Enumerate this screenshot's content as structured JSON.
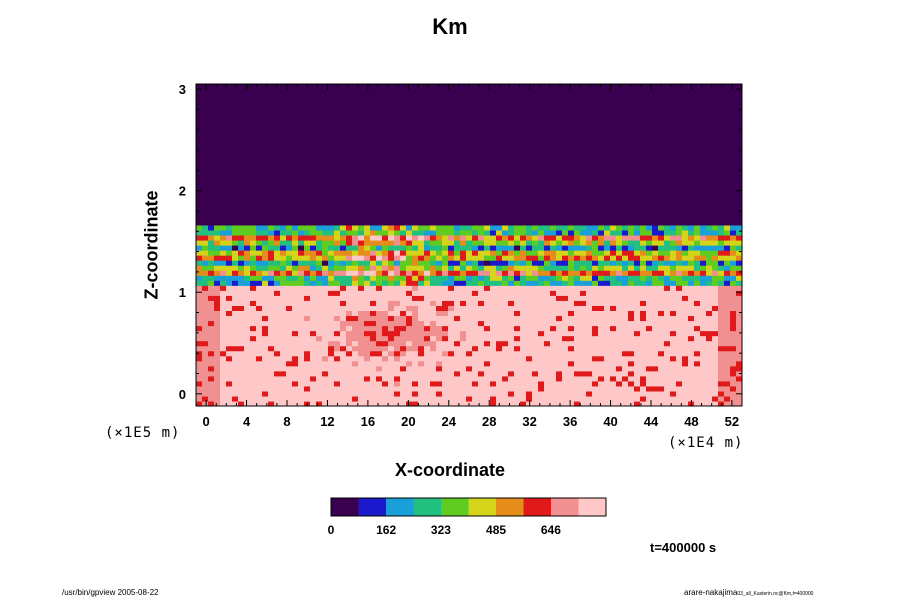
{
  "chart_data": {
    "type": "heatmap",
    "title": "Km",
    "xlabel": "X-coordinate",
    "ylabel": "Z-coordinate",
    "x_unit": "(×1E4 m)",
    "y_unit": "(×1E5 m)",
    "x_ticks": [
      "0",
      "4",
      "8",
      "12",
      "16",
      "20",
      "24",
      "28",
      "32",
      "36",
      "40",
      "44",
      "48",
      "52"
    ],
    "y_ticks": [
      "0",
      "1",
      "2",
      "3"
    ],
    "xlim": [
      -1,
      53
    ],
    "ylim": [
      -0.12,
      3.05
    ],
    "colorbar": {
      "min": 0,
      "max": 808,
      "ticks": [
        "0",
        "162",
        "323",
        "485",
        "646"
      ],
      "colors": [
        "#3a0050",
        "#1a1acc",
        "#1a9fd8",
        "#22c080",
        "#60cc22",
        "#d4d41a",
        "#e68c1a",
        "#e01a1a",
        "#f09090",
        "#ffc8c8"
      ]
    },
    "field_description": [
      {
        "region": "z 1.68 to 3.05",
        "value_level": "uniform 0"
      },
      {
        "region": "z 1.05 to 1.68",
        "value_level": "banded 0 to 808"
      },
      {
        "region": "z -0.12 to 1.05",
        "value_level": "mostly high, scattered"
      }
    ],
    "time_label": "t=400000 s"
  },
  "footer": {
    "left": "/usr/bin/gpview 2005-08-22",
    "right_main": "arare-nakajima",
    "right_small": "03_all_Kasterin.nc@Km,t=400000"
  }
}
